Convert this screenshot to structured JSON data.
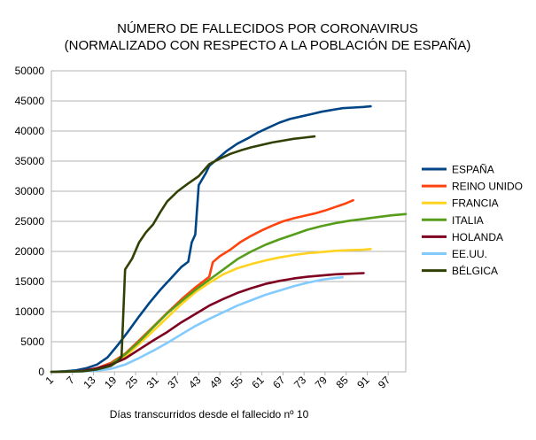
{
  "chart_data": {
    "type": "line",
    "title_lines": [
      "NÚMERO DE FALLECIDOS POR CORONAVIRUS",
      "(NORMALIZADO CON RESPECTO A LA POBLACIÓN DE ESPAÑA)"
    ],
    "xlabel": "Días transcurridos desde el fallecido nº 10",
    "ylabel": "",
    "xlim": [
      1,
      102
    ],
    "ylim": [
      0,
      50000
    ],
    "x_ticks": [
      "1",
      "7",
      "13",
      "19",
      "25",
      "31",
      "37",
      "43",
      "49",
      "55",
      "61",
      "67",
      "73",
      "79",
      "85",
      "91",
      "97"
    ],
    "y_ticks": [
      "0",
      "5000",
      "10000",
      "15000",
      "20000",
      "25000",
      "30000",
      "35000",
      "40000",
      "45000",
      "50000"
    ],
    "grid": true,
    "legend_position": "right",
    "series": [
      {
        "name": "ESPAÑA",
        "color": "#004586",
        "points": [
          [
            1,
            0
          ],
          [
            5,
            100
          ],
          [
            8,
            250
          ],
          [
            11,
            600
          ],
          [
            14,
            1200
          ],
          [
            17,
            2400
          ],
          [
            20,
            4500
          ],
          [
            23,
            6800
          ],
          [
            26,
            9200
          ],
          [
            29,
            11500
          ],
          [
            32,
            13600
          ],
          [
            35,
            15500
          ],
          [
            38,
            17400
          ],
          [
            40,
            18300
          ],
          [
            41,
            21500
          ],
          [
            42,
            22800
          ],
          [
            43,
            31000
          ],
          [
            44,
            32000
          ],
          [
            45,
            33000
          ],
          [
            46,
            34200
          ],
          [
            48,
            35200
          ],
          [
            51,
            36700
          ],
          [
            54,
            37900
          ],
          [
            57,
            38800
          ],
          [
            60,
            39800
          ],
          [
            63,
            40600
          ],
          [
            66,
            41400
          ],
          [
            69,
            42000
          ],
          [
            72,
            42400
          ],
          [
            75,
            42800
          ],
          [
            78,
            43200
          ],
          [
            81,
            43500
          ],
          [
            84,
            43800
          ],
          [
            87,
            43900
          ],
          [
            90,
            44000
          ],
          [
            92,
            44100
          ]
        ]
      },
      {
        "name": "REINO UNIDO",
        "color": "#ff420e",
        "points": [
          [
            1,
            0
          ],
          [
            6,
            50
          ],
          [
            10,
            150
          ],
          [
            14,
            600
          ],
          [
            18,
            1500
          ],
          [
            22,
            3000
          ],
          [
            26,
            5200
          ],
          [
            30,
            7500
          ],
          [
            34,
            9800
          ],
          [
            38,
            12000
          ],
          [
            42,
            14000
          ],
          [
            46,
            15800
          ],
          [
            47,
            18200
          ],
          [
            49,
            19200
          ],
          [
            52,
            20300
          ],
          [
            55,
            21600
          ],
          [
            58,
            22600
          ],
          [
            61,
            23500
          ],
          [
            64,
            24300
          ],
          [
            67,
            25000
          ],
          [
            70,
            25500
          ],
          [
            73,
            25900
          ],
          [
            76,
            26300
          ],
          [
            79,
            26800
          ],
          [
            82,
            27400
          ],
          [
            85,
            28000
          ],
          [
            87,
            28500
          ]
        ]
      },
      {
        "name": "FRANCIA",
        "color": "#ffd320",
        "points": [
          [
            1,
            0
          ],
          [
            6,
            50
          ],
          [
            10,
            120
          ],
          [
            14,
            400
          ],
          [
            18,
            1200
          ],
          [
            22,
            2500
          ],
          [
            26,
            4600
          ],
          [
            30,
            6800
          ],
          [
            34,
            9000
          ],
          [
            38,
            11200
          ],
          [
            42,
            13200
          ],
          [
            46,
            14800
          ],
          [
            50,
            16200
          ],
          [
            54,
            17200
          ],
          [
            58,
            17900
          ],
          [
            62,
            18500
          ],
          [
            66,
            19000
          ],
          [
            70,
            19400
          ],
          [
            74,
            19700
          ],
          [
            78,
            19900
          ],
          [
            82,
            20100
          ],
          [
            86,
            20200
          ],
          [
            90,
            20300
          ],
          [
            92,
            20400
          ]
        ]
      },
      {
        "name": "ITALIA",
        "color": "#579d1c",
        "points": [
          [
            1,
            0
          ],
          [
            6,
            50
          ],
          [
            10,
            150
          ],
          [
            14,
            500
          ],
          [
            18,
            1300
          ],
          [
            22,
            2900
          ],
          [
            26,
            5000
          ],
          [
            30,
            7400
          ],
          [
            34,
            9700
          ],
          [
            38,
            11700
          ],
          [
            42,
            13600
          ],
          [
            46,
            15300
          ],
          [
            50,
            17000
          ],
          [
            54,
            18700
          ],
          [
            58,
            20000
          ],
          [
            62,
            21100
          ],
          [
            66,
            22000
          ],
          [
            70,
            22800
          ],
          [
            74,
            23600
          ],
          [
            78,
            24200
          ],
          [
            82,
            24700
          ],
          [
            86,
            25100
          ],
          [
            90,
            25400
          ],
          [
            94,
            25700
          ],
          [
            98,
            26000
          ],
          [
            102,
            26200
          ]
        ]
      },
      {
        "name": "HOLANDA",
        "color": "#7e0021",
        "points": [
          [
            1,
            0
          ],
          [
            6,
            50
          ],
          [
            10,
            150
          ],
          [
            14,
            600
          ],
          [
            18,
            1200
          ],
          [
            22,
            2200
          ],
          [
            26,
            3700
          ],
          [
            30,
            5200
          ],
          [
            34,
            6600
          ],
          [
            38,
            8200
          ],
          [
            42,
            9600
          ],
          [
            46,
            11000
          ],
          [
            50,
            12100
          ],
          [
            54,
            13100
          ],
          [
            58,
            13900
          ],
          [
            62,
            14600
          ],
          [
            66,
            15100
          ],
          [
            70,
            15500
          ],
          [
            74,
            15800
          ],
          [
            78,
            16000
          ],
          [
            82,
            16200
          ],
          [
            86,
            16300
          ],
          [
            90,
            16400
          ]
        ]
      },
      {
        "name": "EE.UU.",
        "color": "#83caff",
        "points": [
          [
            1,
            0
          ],
          [
            6,
            30
          ],
          [
            10,
            80
          ],
          [
            14,
            200
          ],
          [
            18,
            500
          ],
          [
            22,
            1200
          ],
          [
            26,
            2300
          ],
          [
            30,
            3500
          ],
          [
            34,
            4800
          ],
          [
            38,
            6200
          ],
          [
            42,
            7600
          ],
          [
            46,
            8800
          ],
          [
            50,
            9900
          ],
          [
            54,
            11000
          ],
          [
            58,
            11900
          ],
          [
            62,
            12800
          ],
          [
            66,
            13500
          ],
          [
            70,
            14200
          ],
          [
            74,
            14800
          ],
          [
            78,
            15300
          ],
          [
            82,
            15600
          ],
          [
            84,
            15700
          ]
        ]
      },
      {
        "name": "BÉLGICA",
        "color": "#314004",
        "points": [
          [
            1,
            0
          ],
          [
            6,
            50
          ],
          [
            10,
            100
          ],
          [
            14,
            400
          ],
          [
            18,
            1000
          ],
          [
            20,
            1800
          ],
          [
            21,
            2500
          ],
          [
            22,
            17000
          ],
          [
            24,
            18800
          ],
          [
            26,
            21500
          ],
          [
            28,
            23200
          ],
          [
            30,
            24500
          ],
          [
            32,
            26500
          ],
          [
            34,
            28300
          ],
          [
            37,
            30000
          ],
          [
            40,
            31300
          ],
          [
            43,
            32500
          ],
          [
            46,
            34500
          ],
          [
            49,
            35400
          ],
          [
            52,
            36200
          ],
          [
            55,
            36800
          ],
          [
            58,
            37300
          ],
          [
            61,
            37700
          ],
          [
            64,
            38100
          ],
          [
            67,
            38400
          ],
          [
            70,
            38700
          ],
          [
            73,
            38900
          ],
          [
            76,
            39100
          ]
        ]
      }
    ]
  }
}
